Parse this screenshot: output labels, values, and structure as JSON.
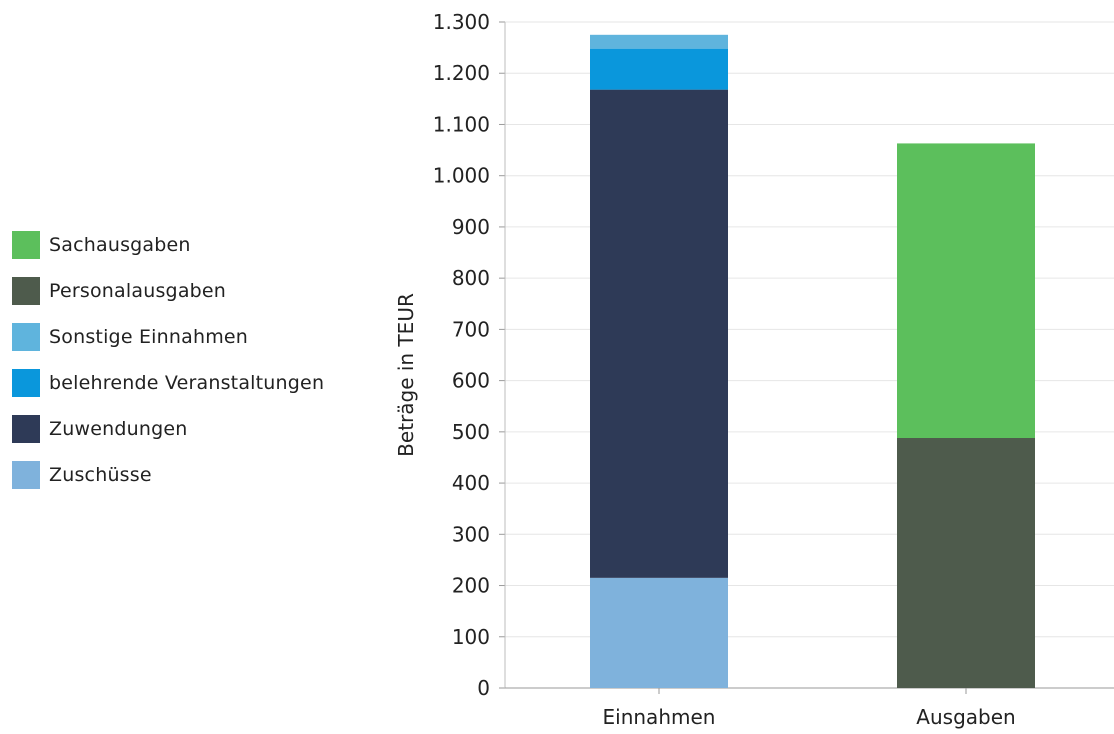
{
  "chart_data": {
    "type": "bar",
    "stacked": true,
    "categories": [
      "Einnahmen",
      "Ausgaben"
    ],
    "ylabel": "Beträge in TEUR",
    "xlabel": "",
    "ylim": [
      0,
      1300
    ],
    "yticks": [
      0,
      100,
      200,
      300,
      400,
      500,
      600,
      700,
      800,
      900,
      1000,
      1100,
      1200,
      1300
    ],
    "ytick_labels": [
      "0",
      "100",
      "200",
      "300",
      "400",
      "500",
      "600",
      "700",
      "800",
      "900",
      "1.000",
      "1.100",
      "1.200",
      "1.300"
    ],
    "grid": true,
    "legend_position": "left",
    "series": [
      {
        "name": "Zuschüsse",
        "color": "#7fb2dc",
        "values": [
          215,
          0
        ]
      },
      {
        "name": "Zuwendungen",
        "color": "#2e3a57",
        "values": [
          953,
          0
        ]
      },
      {
        "name": "belehrende Veranstaltungen",
        "color": "#0a97dc",
        "values": [
          80,
          0
        ]
      },
      {
        "name": "Sonstige Einnahmen",
        "color": "#5fb4dd",
        "values": [
          27,
          0
        ]
      },
      {
        "name": "Personalausgaben",
        "color": "#4e5b4c",
        "values": [
          0,
          488
        ]
      },
      {
        "name": "Sachausgaben",
        "color": "#5cbf5c",
        "values": [
          0,
          575
        ]
      }
    ],
    "legend_order": [
      "Sachausgaben",
      "Personalausgaben",
      "Sonstige Einnahmen",
      "belehrende Veranstaltungen",
      "Zuwendungen",
      "Zuschüsse"
    ]
  }
}
